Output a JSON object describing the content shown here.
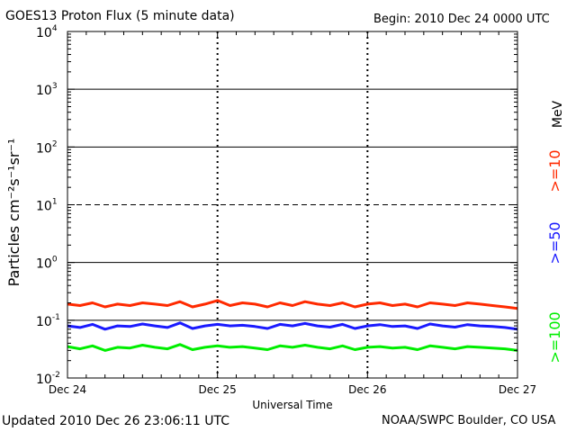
{
  "header": {
    "title": "GOES13 Proton Flux (5 minute data)",
    "begin": "Begin: 2010 Dec 24 0000 UTC"
  },
  "footer": {
    "updated": "Updated 2010 Dec 26 23:06:11 UTC",
    "credit": "NOAA/SWPC Boulder, CO USA"
  },
  "chart_data": {
    "type": "line",
    "title": "GOES13 Proton Flux (5 minute data)",
    "xlabel": "Universal Time",
    "ylabel": "Particles cm⁻²s⁻¹sr⁻¹",
    "yscale": "log",
    "ylim": [
      0.01,
      10000
    ],
    "xlim": [
      0,
      72
    ],
    "x_unit": "hours since 2010 Dec 24 0000 UTC",
    "x_ticks": [
      {
        "x": 0,
        "label": "Dec 24"
      },
      {
        "x": 24,
        "label": "Dec 25"
      },
      {
        "x": 48,
        "label": "Dec 26"
      },
      {
        "x": 72,
        "label": "Dec 27"
      }
    ],
    "y_ticks": [
      {
        "value": 0.01,
        "base": "10",
        "exp": "-2"
      },
      {
        "value": 0.1,
        "base": "10",
        "exp": "-1"
      },
      {
        "value": 1,
        "base": "10",
        "exp": "0"
      },
      {
        "value": 10,
        "base": "10",
        "exp": "1"
      },
      {
        "value": 100,
        "base": "10",
        "exp": "2"
      },
      {
        "value": 1000,
        "base": "10",
        "exp": "3"
      },
      {
        "value": 10000,
        "base": "10",
        "exp": "4"
      }
    ],
    "hlines": [
      {
        "value": 1000,
        "style": "solid"
      },
      {
        "value": 100,
        "style": "solid"
      },
      {
        "value": 10,
        "style": "dashed"
      },
      {
        "value": 1,
        "style": "solid"
      },
      {
        "value": 0.1,
        "style": "solid"
      }
    ],
    "vgrid": "dashed at day boundaries",
    "unit_label": "MeV",
    "series": [
      {
        "name": ">=10",
        "color": "#ff2a00",
        "x": [
          0,
          2,
          4,
          6,
          8,
          10,
          12,
          14,
          16,
          18,
          20,
          22,
          24,
          26,
          28,
          30,
          32,
          34,
          36,
          38,
          40,
          42,
          44,
          46,
          48,
          50,
          52,
          54,
          56,
          58,
          60,
          62,
          64,
          66,
          68,
          70,
          72
        ],
        "values": [
          0.19,
          0.18,
          0.2,
          0.17,
          0.19,
          0.18,
          0.2,
          0.19,
          0.18,
          0.21,
          0.17,
          0.19,
          0.22,
          0.18,
          0.2,
          0.19,
          0.17,
          0.2,
          0.18,
          0.21,
          0.19,
          0.18,
          0.2,
          0.17,
          0.19,
          0.2,
          0.18,
          0.19,
          0.17,
          0.2,
          0.19,
          0.18,
          0.2,
          0.19,
          0.18,
          0.17,
          0.16
        ]
      },
      {
        "name": ">=50",
        "color": "#1a1aff",
        "x": [
          0,
          2,
          4,
          6,
          8,
          10,
          12,
          14,
          16,
          18,
          20,
          22,
          24,
          26,
          28,
          30,
          32,
          34,
          36,
          38,
          40,
          42,
          44,
          46,
          48,
          50,
          52,
          54,
          56,
          58,
          60,
          62,
          64,
          66,
          68,
          70,
          72
        ],
        "values": [
          0.08,
          0.075,
          0.085,
          0.07,
          0.08,
          0.078,
          0.086,
          0.08,
          0.075,
          0.09,
          0.072,
          0.08,
          0.085,
          0.08,
          0.082,
          0.078,
          0.072,
          0.085,
          0.08,
          0.088,
          0.08,
          0.076,
          0.085,
          0.072,
          0.08,
          0.084,
          0.078,
          0.08,
          0.072,
          0.086,
          0.08,
          0.076,
          0.084,
          0.08,
          0.078,
          0.075,
          0.07
        ]
      },
      {
        "name": ">=100",
        "color": "#00ee00",
        "x": [
          0,
          2,
          4,
          6,
          8,
          10,
          12,
          14,
          16,
          18,
          20,
          22,
          24,
          26,
          28,
          30,
          32,
          34,
          36,
          38,
          40,
          42,
          44,
          46,
          48,
          50,
          52,
          54,
          56,
          58,
          60,
          62,
          64,
          66,
          68,
          70,
          72
        ],
        "values": [
          0.035,
          0.032,
          0.036,
          0.03,
          0.034,
          0.033,
          0.037,
          0.034,
          0.032,
          0.038,
          0.031,
          0.034,
          0.036,
          0.034,
          0.035,
          0.033,
          0.031,
          0.036,
          0.034,
          0.037,
          0.034,
          0.032,
          0.036,
          0.031,
          0.034,
          0.035,
          0.033,
          0.034,
          0.031,
          0.036,
          0.034,
          0.032,
          0.035,
          0.034,
          0.033,
          0.032,
          0.03
        ]
      }
    ]
  }
}
